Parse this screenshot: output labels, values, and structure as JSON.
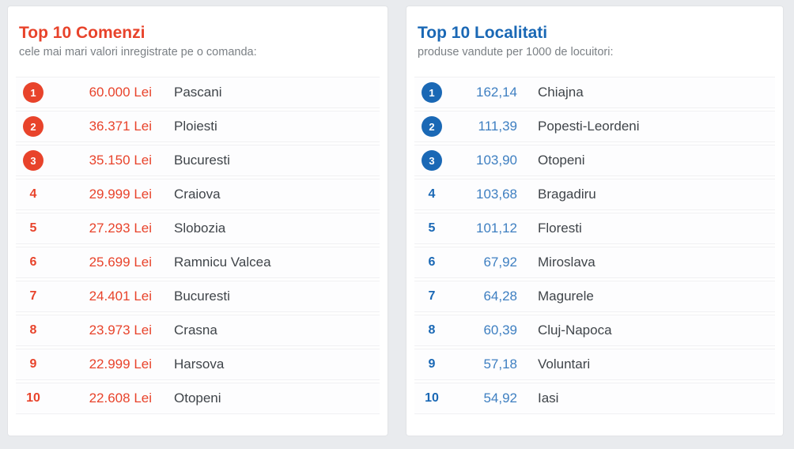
{
  "panels": [
    {
      "title": "Top 10 Comenzi",
      "subtitle": "cele mai mari valori inregistrate pe o comanda:",
      "accent_color": "#e8432b",
      "value_text_color": "#e8432b",
      "rows": [
        {
          "rank": "1",
          "value": "60.000 Lei",
          "city": "Pascani"
        },
        {
          "rank": "2",
          "value": "36.371 Lei",
          "city": "Ploiesti"
        },
        {
          "rank": "3",
          "value": "35.150 Lei",
          "city": "Bucuresti"
        },
        {
          "rank": "4",
          "value": "29.999 Lei",
          "city": "Craiova"
        },
        {
          "rank": "5",
          "value": "27.293 Lei",
          "city": "Slobozia"
        },
        {
          "rank": "6",
          "value": "25.699 Lei",
          "city": "Ramnicu Valcea"
        },
        {
          "rank": "7",
          "value": "24.401 Lei",
          "city": "Bucuresti"
        },
        {
          "rank": "8",
          "value": "23.973 Lei",
          "city": "Crasna"
        },
        {
          "rank": "9",
          "value": "22.999 Lei",
          "city": "Harsova"
        },
        {
          "rank": "10",
          "value": "22.608 Lei",
          "city": "Otopeni"
        }
      ]
    },
    {
      "title": "Top 10 Localitati",
      "subtitle": "produse vandute per 1000 de locuitori:",
      "accent_color": "#1a68b5",
      "value_text_color": "#3e7fc1",
      "rows": [
        {
          "rank": "1",
          "value": "162,14",
          "city": "Chiajna"
        },
        {
          "rank": "2",
          "value": "111,39",
          "city": "Popesti-Leordeni"
        },
        {
          "rank": "3",
          "value": "103,90",
          "city": "Otopeni"
        },
        {
          "rank": "4",
          "value": "103,68",
          "city": "Bragadiru"
        },
        {
          "rank": "5",
          "value": "101,12",
          "city": "Floresti"
        },
        {
          "rank": "6",
          "value": "67,92",
          "city": "Miroslava"
        },
        {
          "rank": "7",
          "value": "64,28",
          "city": "Magurele"
        },
        {
          "rank": "8",
          "value": "60,39",
          "city": "Cluj-Napoca"
        },
        {
          "rank": "9",
          "value": "57,18",
          "city": "Voluntari"
        },
        {
          "rank": "10",
          "value": "54,92",
          "city": "Iasi"
        }
      ]
    }
  ]
}
